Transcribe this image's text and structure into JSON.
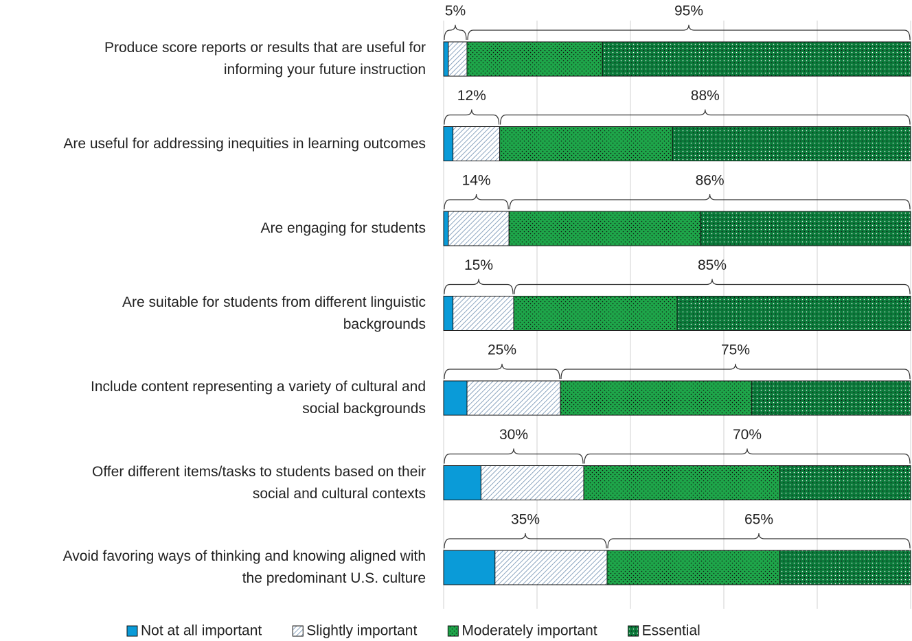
{
  "chart_data": {
    "type": "stacked-bar-horizontal",
    "categories": [
      "Produce score reports or results that are useful for\ninforming your future instruction",
      "Are useful for addressing inequities in learning outcomes",
      "Are engaging for students",
      "Are suitable for students from different linguistic\nbackgrounds",
      "Include content representing a variety of cultural and\nsocial backgrounds",
      "Offer different items/tasks to students based on their\nsocial and cultural contexts",
      "Avoid favoring ways of thinking and knowing aligned with\nthe predominant U.S. culture"
    ],
    "series": [
      {
        "name": "Not at all important",
        "color": "#0a9bd8",
        "pattern": "solid",
        "values": [
          1,
          2,
          1,
          2,
          5,
          8,
          11
        ]
      },
      {
        "name": "Slightly important",
        "color": "#6f8fb0",
        "pattern": "hatch",
        "values": [
          4,
          10,
          13,
          13,
          20,
          22,
          24
        ]
      },
      {
        "name": "Moderately important",
        "color": "#1ea64a",
        "pattern": "dots",
        "values": [
          29,
          37,
          41,
          35,
          41,
          42,
          37
        ]
      },
      {
        "name": "Essential",
        "color": "#0b7a3a",
        "pattern": "dots",
        "values": [
          66,
          51,
          45,
          50,
          34,
          28,
          28
        ]
      }
    ],
    "brackets": [
      [
        {
          "value": 5,
          "label": "5%"
        },
        {
          "value": 95,
          "label": "95%"
        }
      ],
      [
        {
          "value": 12,
          "label": "12%"
        },
        {
          "value": 88,
          "label": "88%"
        }
      ],
      [
        {
          "value": 14,
          "label": "14%"
        },
        {
          "value": 86,
          "label": "86%"
        }
      ],
      [
        {
          "value": 15,
          "label": "15%"
        },
        {
          "value": 85,
          "label": "85%"
        }
      ],
      [
        {
          "value": 25,
          "label": "25%"
        },
        {
          "value": 75,
          "label": "75%"
        }
      ],
      [
        {
          "value": 30,
          "label": "30%"
        },
        {
          "value": 70,
          "label": "70%"
        }
      ],
      [
        {
          "value": 35,
          "label": "35%"
        },
        {
          "value": 65,
          "label": "65%"
        }
      ]
    ],
    "xlim": [
      0,
      100
    ],
    "xticks": [
      0,
      20,
      40,
      60,
      80,
      100
    ],
    "grid": true,
    "legend": "bottom"
  }
}
